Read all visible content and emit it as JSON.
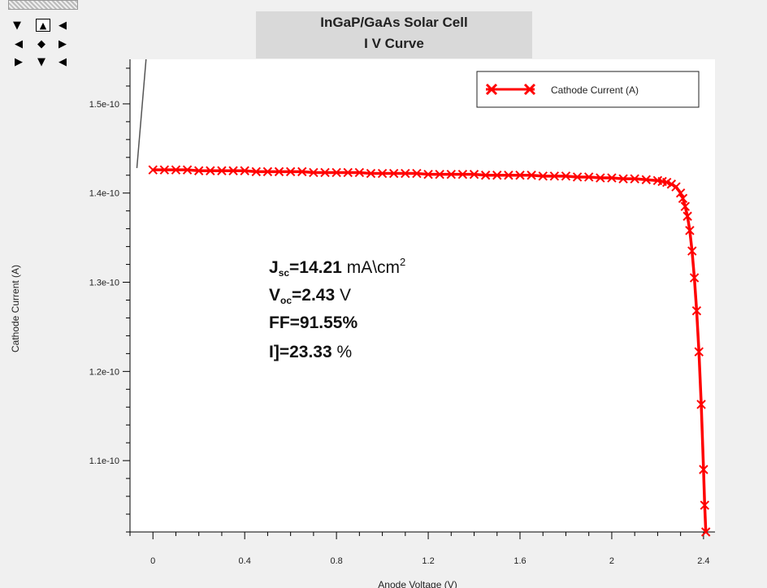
{
  "chart_data": {
    "type": "line",
    "title": "InGaP/GaAs Solar Cell",
    "subtitle": "I V Curve",
    "xlabel": "Anode Voltage (V)",
    "ylabel": "Cathode Current (A)",
    "xlim": [
      -0.1,
      2.45
    ],
    "ylim": [
      1.02e-10,
      1.55e-10
    ],
    "x_ticks": [
      "0",
      "0.4",
      "0.8",
      "1.2",
      "1.6",
      "2",
      "2.4"
    ],
    "x_tick_values": [
      0,
      0.4,
      0.8,
      1.2,
      1.6,
      2.0,
      2.4
    ],
    "y_ticks": [
      "1.1e-10",
      "1.2e-10",
      "1.3e-10",
      "1.4e-10",
      "1.5e-10"
    ],
    "y_tick_values": [
      1.1e-10,
      1.2e-10,
      1.3e-10,
      1.4e-10,
      1.5e-10
    ],
    "legend_position": "top-right",
    "series": [
      {
        "name": "Cathode Current (A)",
        "color": "#ff0000",
        "marker": "x",
        "x": [
          0,
          0.05,
          0.1,
          0.15,
          0.2,
          0.25,
          0.3,
          0.35,
          0.4,
          0.45,
          0.5,
          0.55,
          0.6,
          0.65,
          0.7,
          0.75,
          0.8,
          0.85,
          0.9,
          0.95,
          1.0,
          1.05,
          1.1,
          1.15,
          1.2,
          1.25,
          1.3,
          1.35,
          1.4,
          1.45,
          1.5,
          1.55,
          1.6,
          1.65,
          1.7,
          1.75,
          1.8,
          1.85,
          1.9,
          1.95,
          2.0,
          2.05,
          2.1,
          2.15,
          2.2,
          2.22,
          2.24,
          2.26,
          2.28,
          2.3,
          2.31,
          2.32,
          2.33,
          2.34,
          2.35,
          2.36,
          2.37,
          2.38,
          2.39,
          2.4,
          2.405,
          2.41
        ],
        "y": [
          1.426e-10,
          1.426e-10,
          1.426e-10,
          1.426e-10,
          1.425e-10,
          1.425e-10,
          1.425e-10,
          1.425e-10,
          1.425e-10,
          1.424e-10,
          1.424e-10,
          1.424e-10,
          1.424e-10,
          1.424e-10,
          1.423e-10,
          1.423e-10,
          1.423e-10,
          1.423e-10,
          1.423e-10,
          1.422e-10,
          1.422e-10,
          1.422e-10,
          1.422e-10,
          1.422e-10,
          1.421e-10,
          1.421e-10,
          1.421e-10,
          1.421e-10,
          1.421e-10,
          1.42e-10,
          1.42e-10,
          1.42e-10,
          1.42e-10,
          1.42e-10,
          1.419e-10,
          1.419e-10,
          1.419e-10,
          1.418e-10,
          1.418e-10,
          1.417e-10,
          1.417e-10,
          1.416e-10,
          1.416e-10,
          1.415e-10,
          1.414e-10,
          1.413e-10,
          1.412e-10,
          1.41e-10,
          1.407e-10,
          1.4e-10,
          1.394e-10,
          1.385e-10,
          1.374e-10,
          1.358e-10,
          1.335e-10,
          1.305e-10,
          1.268e-10,
          1.222e-10,
          1.163e-10,
          1.09e-10,
          1.05e-10,
          1.02e-10
        ]
      }
    ],
    "guide_line": {
      "x": [
        -0.07,
        -0.03
      ],
      "y": [
        1.428e-10,
        1.55e-10
      ],
      "color": "#555555"
    },
    "annotations": {
      "jsc_symbol": "J",
      "jsc_sub": "sc",
      "jsc_value": "=14.21",
      "jsc_unit": " mA\\cm",
      "jsc_sup": "2",
      "voc_symbol": "V",
      "voc_sub": "oc",
      "voc_value": "=2.43",
      "voc_unit": " V",
      "ff": "FF=91.55%",
      "eta_value": "I]=23.33",
      "eta_unit": " %"
    }
  },
  "toolbar": {
    "pan_up": "▼",
    "zoom_box": "▲",
    "pan_upright": "◀",
    "pan_left": "◀",
    "center": "◆",
    "pan_right": "▶",
    "pan_down_left": "▶",
    "pan_down": "▼",
    "pan_down_right": "◀"
  }
}
